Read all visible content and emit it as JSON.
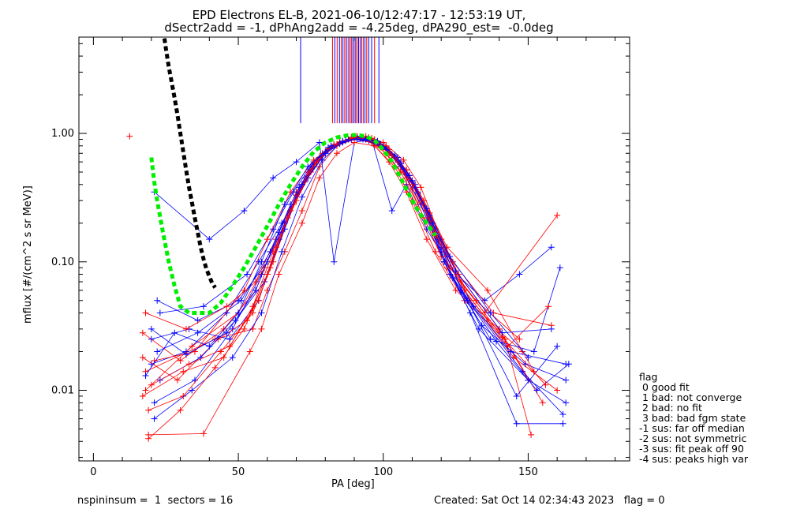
{
  "title": {
    "line1": "EPD Electrons EL-B, 2021-06-10/12:47:17 - 12:53:19 UT,",
    "line2": "dSectr2add = -1, dPhAng2add = -4.25deg, dPA290_est=  -0.0deg"
  },
  "footer": {
    "left": "nspininsum =  1  sectors = 16",
    "right": "Created: Sat Oct 14 02:34:43 2023   flag = 0"
  },
  "legend": {
    "heading": "flag",
    "items": [
      " 0 good fit",
      " 1 bad: not converge",
      " 2 bad: no fit",
      " 3 bad: bad fgm state",
      "-1 sus: far off median",
      "-2 sus: not symmetric",
      "-3 sus: fit peak off 90",
      "-4 sus: peaks high var"
    ]
  },
  "colors": {
    "red": "#ff0000",
    "blue": "#0000ff",
    "green": "#00ee00",
    "black": "#000000",
    "blueline": "#0000ff",
    "redline": "#ff0000"
  },
  "chart_data": {
    "type": "line",
    "xlabel": "PA [deg]",
    "ylabel": "mflux [#/(cm^2 s sr MeV)]",
    "xlim": [
      -5,
      185
    ],
    "ylim_log10": [
      -2.55,
      0.75
    ],
    "xticks": [
      {
        "value": 0,
        "label": "0"
      },
      {
        "value": 50,
        "label": "50"
      },
      {
        "value": 100,
        "label": "100"
      },
      {
        "value": 150,
        "label": "150"
      }
    ],
    "yticks": [
      {
        "value": 0.01,
        "label": "0.01"
      },
      {
        "value": 0.1,
        "label": "0.10"
      },
      {
        "value": 1.0,
        "label": "1.00"
      }
    ],
    "green_fit": {
      "x": [
        20,
        21,
        22,
        24,
        26,
        28,
        30,
        33,
        36,
        40,
        44,
        48,
        52,
        56,
        60,
        64,
        68,
        72,
        76,
        80,
        84,
        88,
        91,
        94,
        97,
        100,
        103,
        106,
        109,
        112,
        115,
        118
      ],
      "y": [
        0.65,
        0.42,
        0.3,
        0.17,
        0.1,
        0.065,
        0.045,
        0.04,
        0.04,
        0.04,
        0.048,
        0.065,
        0.09,
        0.13,
        0.19,
        0.28,
        0.4,
        0.55,
        0.72,
        0.85,
        0.93,
        0.97,
        0.97,
        0.95,
        0.88,
        0.75,
        0.6,
        0.45,
        0.33,
        0.25,
        0.2,
        0.16
      ]
    },
    "black_fit": {
      "x": [
        24.5,
        25,
        26,
        27,
        28,
        29,
        30,
        31,
        32,
        33,
        34,
        35,
        36,
        37,
        38,
        39,
        40,
        41,
        42
      ],
      "y": [
        5.5,
        4.6,
        3.3,
        2.5,
        1.9,
        1.4,
        1.0,
        0.72,
        0.52,
        0.38,
        0.29,
        0.22,
        0.17,
        0.13,
        0.105,
        0.088,
        0.077,
        0.068,
        0.063
      ]
    },
    "vertical_markers": {
      "x": [
        71.5,
        82.5,
        83.3,
        84.1,
        84.9,
        85.5,
        86.1,
        86.7,
        87.3,
        87.9,
        88.5,
        89.0,
        89.5,
        90.0,
        90.5,
        91.0,
        91.5,
        92.0,
        92.5,
        93.1,
        93.7,
        94.3,
        95.0,
        96.0,
        97.0,
        98.5
      ],
      "colors": [
        "blue",
        "red",
        "blue",
        "red",
        "blue",
        "red",
        "blue",
        "red",
        "blue",
        "red",
        "blue",
        "red",
        "blue",
        "red",
        "blue",
        "red",
        "blue",
        "red",
        "blue",
        "red",
        "blue",
        "red",
        "blue",
        "blue",
        "red",
        "blue"
      ],
      "y_top": 5.9,
      "y_bottom": 1.2
    },
    "series": [
      {
        "color": "red",
        "marker": "+",
        "x": [
          12.5
        ],
        "y": [
          0.95
        ]
      },
      {
        "color": "red",
        "marker": "+",
        "x": [
          18,
          42,
          55,
          60,
          66,
          72,
          78,
          84,
          90,
          96,
          102,
          108,
          115,
          125,
          140,
          150
        ],
        "y": [
          0.014,
          0.025,
          0.03,
          0.06,
          0.12,
          0.25,
          0.55,
          0.8,
          0.9,
          0.85,
          0.6,
          0.35,
          0.15,
          0.06,
          0.03,
          0.012
        ]
      },
      {
        "color": "blue",
        "marker": "+",
        "x": [
          21,
          40,
          52,
          62,
          70,
          78,
          83,
          90,
          96,
          103,
          108,
          115,
          123,
          135,
          147,
          158
        ],
        "y": [
          0.35,
          0.15,
          0.25,
          0.45,
          0.6,
          0.85,
          0.1,
          0.85,
          0.9,
          0.25,
          0.4,
          0.18,
          0.09,
          0.05,
          0.08,
          0.13
        ]
      },
      {
        "color": "red",
        "marker": "+",
        "x": [
          19,
          38,
          54,
          58,
          64,
          72,
          78,
          84,
          90,
          97,
          104,
          110,
          118,
          128,
          142,
          151
        ],
        "y": [
          0.0045,
          0.0046,
          0.02,
          0.03,
          0.08,
          0.2,
          0.45,
          0.7,
          0.85,
          0.8,
          0.55,
          0.3,
          0.12,
          0.05,
          0.025,
          0.0045
        ]
      },
      {
        "color": "blue",
        "marker": "+",
        "x": [
          20,
          32,
          46,
          57,
          65,
          73,
          80,
          86,
          92,
          99,
          106,
          112,
          120,
          130,
          146,
          162
        ],
        "y": [
          0.016,
          0.02,
          0.04,
          0.1,
          0.2,
          0.42,
          0.7,
          0.85,
          0.92,
          0.82,
          0.6,
          0.35,
          0.12,
          0.04,
          0.0055,
          0.0055
        ]
      },
      {
        "color": "red",
        "marker": "+",
        "x": [
          17,
          30,
          45,
          56,
          63,
          70,
          77,
          83,
          89,
          95,
          101,
          108,
          114,
          122,
          136,
          148
        ],
        "y": [
          0.028,
          0.017,
          0.03,
          0.06,
          0.15,
          0.35,
          0.62,
          0.82,
          0.92,
          0.88,
          0.7,
          0.45,
          0.22,
          0.09,
          0.035,
          0.02
        ]
      },
      {
        "color": "blue",
        "marker": "+",
        "x": [
          21,
          35,
          48,
          58,
          66,
          74,
          81,
          87,
          93,
          100,
          106,
          113,
          121,
          133,
          150,
          163
        ],
        "y": [
          0.008,
          0.012,
          0.03,
          0.08,
          0.2,
          0.45,
          0.75,
          0.88,
          0.9,
          0.8,
          0.58,
          0.3,
          0.1,
          0.03,
          0.012,
          0.008
        ]
      },
      {
        "color": "red",
        "marker": "+",
        "x": [
          18,
          34,
          50,
          59,
          67,
          75,
          82,
          88,
          94,
          100,
          107,
          113,
          120,
          130,
          145,
          160
        ],
        "y": [
          0.01,
          0.022,
          0.04,
          0.09,
          0.22,
          0.5,
          0.78,
          0.9,
          0.95,
          0.85,
          0.62,
          0.38,
          0.15,
          0.05,
          0.018,
          0.01
        ]
      },
      {
        "color": "blue",
        "marker": "+",
        "x": [
          22,
          36,
          50,
          60,
          68,
          76,
          82,
          88,
          94,
          101,
          108,
          115,
          123,
          137,
          152,
          161
        ],
        "y": [
          0.05,
          0.035,
          0.05,
          0.1,
          0.25,
          0.55,
          0.8,
          0.9,
          0.9,
          0.78,
          0.52,
          0.25,
          0.08,
          0.025,
          0.02,
          0.09
        ]
      },
      {
        "color": "red",
        "marker": "+",
        "x": [
          19,
          31,
          44,
          55,
          62,
          69,
          76,
          83,
          90,
          96,
          103,
          110,
          117,
          126,
          140,
          155
        ],
        "y": [
          0.007,
          0.009,
          0.02,
          0.04,
          0.1,
          0.28,
          0.58,
          0.8,
          0.92,
          0.88,
          0.68,
          0.42,
          0.2,
          0.08,
          0.03,
          0.008
        ]
      },
      {
        "color": "blue",
        "marker": "+",
        "x": [
          20,
          33,
          47,
          57,
          64,
          71,
          78,
          85,
          91,
          98,
          105,
          111,
          118,
          127,
          144,
          163
        ],
        "y": [
          0.025,
          0.03,
          0.025,
          0.05,
          0.15,
          0.38,
          0.65,
          0.85,
          0.93,
          0.86,
          0.65,
          0.4,
          0.18,
          0.06,
          0.02,
          0.016
        ]
      },
      {
        "color": "red",
        "marker": "+",
        "x": [
          17,
          29,
          43,
          53,
          61,
          68,
          75,
          81,
          87,
          93,
          99,
          106,
          112,
          120,
          132,
          147
        ],
        "y": [
          0.018,
          0.012,
          0.025,
          0.035,
          0.09,
          0.25,
          0.52,
          0.75,
          0.88,
          0.9,
          0.78,
          0.5,
          0.28,
          0.11,
          0.05,
          0.025
        ]
      },
      {
        "color": "blue",
        "marker": "+",
        "x": [
          23,
          37,
          49,
          59,
          66,
          73,
          80,
          86,
          92,
          99,
          105,
          112,
          120,
          131,
          148,
          162
        ],
        "y": [
          0.012,
          0.018,
          0.035,
          0.07,
          0.18,
          0.45,
          0.72,
          0.87,
          0.92,
          0.82,
          0.6,
          0.34,
          0.13,
          0.045,
          0.014,
          0.0065
        ]
      },
      {
        "color": "red",
        "marker": "+",
        "x": [
          18,
          32,
          46,
          56,
          64,
          72,
          79,
          85,
          91,
          97,
          104,
          110,
          118,
          128,
          143,
          157
        ],
        "y": [
          0.04,
          0.03,
          0.045,
          0.07,
          0.17,
          0.4,
          0.7,
          0.86,
          0.95,
          0.9,
          0.65,
          0.37,
          0.16,
          0.06,
          0.022,
          0.045
        ]
      },
      {
        "color": "blue",
        "marker": "+",
        "x": [
          21,
          34,
          48,
          58,
          65,
          72,
          79,
          85,
          91,
          97,
          104,
          111,
          119,
          129,
          146,
          160
        ],
        "y": [
          0.006,
          0.01,
          0.018,
          0.04,
          0.12,
          0.32,
          0.62,
          0.83,
          0.92,
          0.87,
          0.66,
          0.38,
          0.15,
          0.05,
          0.009,
          0.022
        ]
      },
      {
        "color": "red",
        "marker": "+",
        "x": [
          20,
          33,
          47,
          57,
          63,
          70,
          77,
          84,
          90,
          96,
          102,
          109,
          116,
          124,
          138,
          158
        ],
        "y": [
          0.011,
          0.016,
          0.022,
          0.05,
          0.13,
          0.33,
          0.6,
          0.82,
          0.94,
          0.92,
          0.75,
          0.47,
          0.24,
          0.1,
          0.04,
          0.032
        ]
      },
      {
        "color": "blue",
        "marker": "+",
        "x": [
          22,
          36,
          51,
          61,
          68,
          75,
          81,
          87,
          93,
          100,
          106,
          113,
          121,
          134,
          149,
          163
        ],
        "y": [
          0.02,
          0.028,
          0.05,
          0.12,
          0.28,
          0.55,
          0.78,
          0.88,
          0.9,
          0.79,
          0.55,
          0.28,
          0.1,
          0.032,
          0.016,
          0.012
        ]
      },
      {
        "color": "red",
        "marker": "+",
        "x": [
          19,
          30,
          42,
          52,
          60,
          67,
          74,
          81,
          88,
          95,
          101,
          108,
          114,
          122,
          136,
          152
        ],
        "y": [
          0.0042,
          0.007,
          0.015,
          0.03,
          0.08,
          0.22,
          0.5,
          0.76,
          0.9,
          0.93,
          0.8,
          0.52,
          0.3,
          0.13,
          0.06,
          0.014
        ]
      },
      {
        "color": "blue",
        "marker": "+",
        "x": [
          23,
          38,
          53,
          62,
          69,
          76,
          83,
          89,
          95,
          102,
          109,
          116,
          124,
          139,
          153,
          164
        ],
        "y": [
          0.04,
          0.045,
          0.08,
          0.18,
          0.35,
          0.6,
          0.8,
          0.9,
          0.88,
          0.72,
          0.47,
          0.23,
          0.075,
          0.024,
          0.01,
          0.016
        ]
      },
      {
        "color": "red",
        "marker": "+",
        "x": [
          21,
          35,
          52,
          60,
          68,
          76,
          83,
          89,
          95,
          102,
          109,
          116,
          123,
          135,
          160
        ],
        "y": [
          0.017,
          0.02,
          0.06,
          0.15,
          0.35,
          0.62,
          0.82,
          0.93,
          0.9,
          0.72,
          0.44,
          0.22,
          0.09,
          0.04,
          0.23
        ]
      },
      {
        "color": "blue",
        "marker": "+",
        "x": [
          18,
          28,
          40,
          50,
          58,
          66,
          74,
          82,
          88,
          94,
          101,
          108,
          115,
          123,
          137,
          150
        ],
        "y": [
          0.013,
          0.028,
          0.022,
          0.04,
          0.1,
          0.28,
          0.55,
          0.8,
          0.9,
          0.9,
          0.75,
          0.48,
          0.26,
          0.11,
          0.04,
          0.018
        ]
      },
      {
        "color": "red",
        "marker": "+",
        "x": [
          17,
          31,
          45,
          55,
          62,
          70,
          77,
          84,
          90,
          96,
          103,
          110,
          118,
          127,
          141,
          156
        ],
        "y": [
          0.009,
          0.014,
          0.018,
          0.045,
          0.12,
          0.3,
          0.6,
          0.82,
          0.93,
          0.9,
          0.67,
          0.4,
          0.17,
          0.07,
          0.026,
          0.011
        ]
      },
      {
        "color": "blue",
        "marker": "+",
        "x": [
          20,
          32,
          46,
          56,
          64,
          72,
          80,
          86,
          92,
          98,
          104,
          110,
          117,
          125,
          141,
          158
        ],
        "y": [
          0.03,
          0.019,
          0.028,
          0.06,
          0.17,
          0.4,
          0.7,
          0.86,
          0.93,
          0.87,
          0.68,
          0.43,
          0.2,
          0.085,
          0.028,
          0.03
        ]
      }
    ]
  }
}
